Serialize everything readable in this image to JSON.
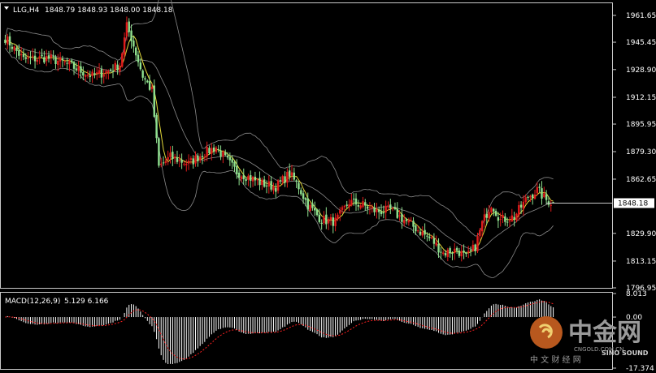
{
  "header": {
    "symbol": "LLG,H4",
    "ohlc": "1848.79 1848.93 1848.00 1848.18"
  },
  "macd_header": {
    "label": "MACD(12,26,9)",
    "values": "5.129 6.166"
  },
  "price_axis_labels": [
    "1961.65",
    "1945.45",
    "1928.90",
    "1912.15",
    "1895.95",
    "1879.30",
    "1862.65",
    "1848.18",
    "1829.90",
    "1813.15",
    "1796.95"
  ],
  "current_price_label": "1848.18",
  "macd_axis_labels": [
    "8.013",
    "0.00",
    "-17.374"
  ],
  "watermark": {
    "title": "中金网",
    "site": "CNGOLD.COM.CN",
    "subtitle": "中 文 财 经 网",
    "brand": "SINO SOUND"
  },
  "colors": {
    "background": "#000000",
    "frame": "#c8c8c8",
    "bull": "#e01b1b",
    "bear": "#8fe08f",
    "bands": "#8a8a8a",
    "ma": "#e3d93a",
    "macd_hist": "#ffffff",
    "macd_signal": "#ff2020"
  },
  "chart_data": {
    "type": "candlestick",
    "title": "LLG,H4",
    "timeframe": "H4",
    "ylim": [
      1796.95,
      1969
    ],
    "y_ticks": [
      1961.65,
      1945.45,
      1928.9,
      1912.15,
      1895.95,
      1879.3,
      1862.65,
      1829.9,
      1813.15,
      1796.95
    ],
    "last_price": 1848.18,
    "last_ohlc": {
      "open": 1848.79,
      "high": 1848.93,
      "low": 1848.0,
      "close": 1848.18
    },
    "overlays": [
      "bollinger_bands",
      "moving_average"
    ],
    "indicator": {
      "name": "MACD(12,26,9)",
      "macd": 5.129,
      "signal": 6.166,
      "axis_ticks": [
        8.013,
        0.0,
        -17.374
      ],
      "ylim": [
        -17.374,
        8.013
      ]
    },
    "close_anchors": [
      [
        0,
        1948
      ],
      [
        8,
        1935
      ],
      [
        18,
        1936
      ],
      [
        26,
        1933
      ],
      [
        33,
        1928
      ],
      [
        38,
        1925
      ],
      [
        45,
        1928
      ],
      [
        50,
        1932
      ],
      [
        53,
        1955
      ],
      [
        55,
        1948
      ],
      [
        60,
        1925
      ],
      [
        64,
        1916
      ],
      [
        67,
        1870
      ],
      [
        72,
        1876
      ],
      [
        80,
        1872
      ],
      [
        86,
        1878
      ],
      [
        92,
        1882
      ],
      [
        96,
        1875
      ],
      [
        101,
        1867
      ],
      [
        106,
        1864
      ],
      [
        112,
        1860
      ],
      [
        118,
        1858
      ],
      [
        124,
        1866
      ],
      [
        128,
        1858
      ],
      [
        132,
        1847
      ],
      [
        138,
        1838
      ],
      [
        144,
        1837
      ],
      [
        150,
        1849
      ],
      [
        156,
        1847
      ],
      [
        162,
        1843
      ],
      [
        168,
        1844
      ],
      [
        174,
        1838
      ],
      [
        180,
        1832
      ],
      [
        186,
        1826
      ],
      [
        191,
        1818
      ],
      [
        197,
        1820
      ],
      [
        201,
        1815
      ],
      [
        205,
        1822
      ],
      [
        208,
        1836
      ],
      [
        212,
        1848
      ],
      [
        216,
        1838
      ],
      [
        222,
        1840
      ],
      [
        228,
        1852
      ],
      [
        232,
        1856
      ],
      [
        236,
        1850
      ],
      [
        239,
        1848.18
      ]
    ]
  }
}
